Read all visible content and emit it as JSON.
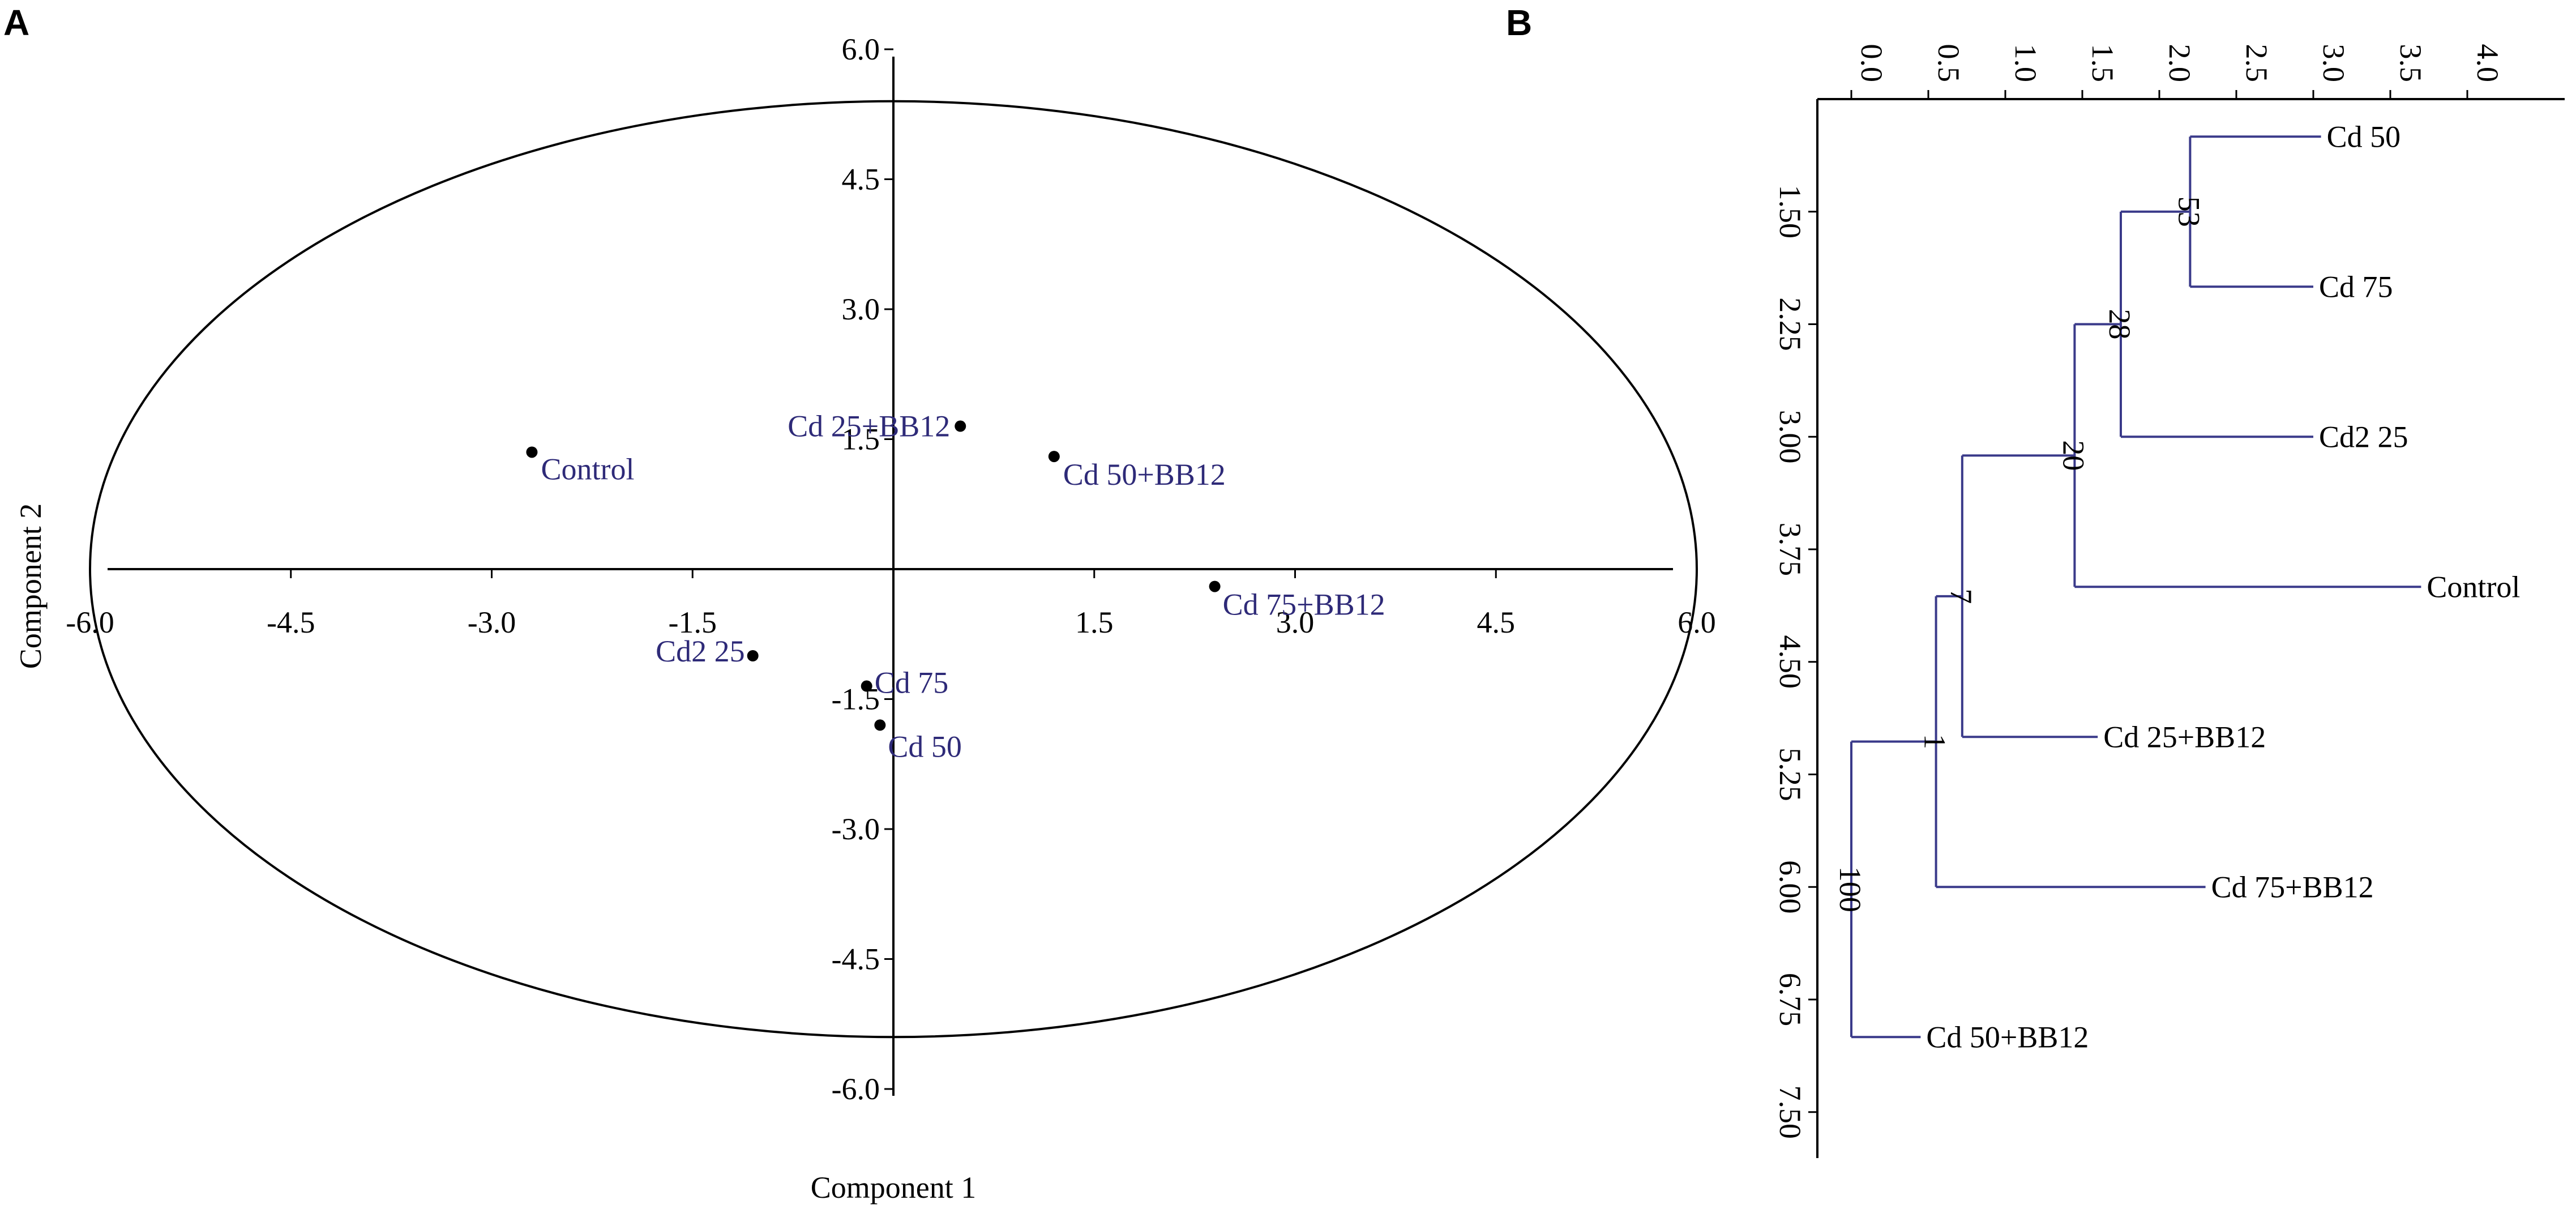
{
  "panels": {
    "a": "A",
    "b": "B"
  },
  "colors": {
    "ink": "#000000",
    "label": "#2e2a78",
    "tree": "#3a3a8a"
  },
  "chart_data": [
    {
      "type": "scatter",
      "xlabel": "Component 1",
      "ylabel": "Component 2",
      "xlim": [
        -6.0,
        6.0
      ],
      "ylim": [
        -6.0,
        6.0
      ],
      "xticks": [
        "-6.0",
        "-4.5",
        "-3.0",
        "-1.5",
        "1.5",
        "3.0",
        "4.5",
        "6.0"
      ],
      "xtick_values": [
        -6.0,
        -4.5,
        -3.0,
        -1.5,
        1.5,
        3.0,
        4.5,
        6.0
      ],
      "yticks": [
        "6.0",
        "4.5",
        "3.0",
        "1.5",
        "-1.5",
        "-3.0",
        "-4.5",
        "-6.0"
      ],
      "ytick_values": [
        6.0,
        4.5,
        3.0,
        1.5,
        -1.5,
        -3.0,
        -4.5,
        -6.0
      ],
      "ellipse": {
        "rx": 6.0,
        "ry": 5.4
      },
      "points": [
        {
          "label": "Control",
          "x": -2.7,
          "y": 1.35
        },
        {
          "label": "Cd 25+BB12",
          "x": 0.5,
          "y": 1.65
        },
        {
          "label": "Cd 50+BB12",
          "x": 1.2,
          "y": 1.3
        },
        {
          "label": "Cd 75+BB12",
          "x": 2.4,
          "y": -0.2
        },
        {
          "label": "Cd2 25",
          "x": -1.05,
          "y": -1.0
        },
        {
          "label": "Cd 75",
          "x": -0.2,
          "y": -1.35
        },
        {
          "label": "Cd 50",
          "x": -0.1,
          "y": -1.8
        }
      ]
    },
    {
      "type": "dendrogram",
      "distance_ticks": [
        "0.0",
        "0.5",
        "1.0",
        "1.5",
        "2.0",
        "2.5",
        "3.0",
        "3.5",
        "4.0"
      ],
      "distance_tick_values": [
        0.0,
        0.5,
        1.0,
        1.5,
        2.0,
        2.5,
        3.0,
        3.5,
        4.0
      ],
      "distance_range": [
        0.0,
        4.0
      ],
      "position_ticks": [
        "1.50",
        "2.25",
        "3.00",
        "3.75",
        "4.50",
        "5.25",
        "6.00",
        "6.75",
        "7.50"
      ],
      "position_tick_values": [
        1.5,
        2.25,
        3.0,
        3.75,
        4.5,
        5.25,
        6.0,
        6.75,
        7.5
      ],
      "position_range": [
        0.75,
        8.25
      ],
      "leaves": [
        {
          "label": "Cd 50",
          "pos": 1.0,
          "tip": 3.05
        },
        {
          "label": "Cd 75",
          "pos": 2.0,
          "tip": 3.0
        },
        {
          "label": "Cd2 25",
          "pos": 3.0,
          "tip": 3.0
        },
        {
          "label": "Control",
          "pos": 4.0,
          "tip": 3.7
        },
        {
          "label": "Cd 25+BB12",
          "pos": 5.0,
          "tip": 1.6
        },
        {
          "label": "Cd 75+BB12",
          "pos": 6.0,
          "tip": 2.3
        },
        {
          "label": "Cd 50+BB12",
          "pos": 7.0,
          "tip": 0.45
        }
      ],
      "merges": [
        {
          "label": "53",
          "height": 2.2,
          "children": [
            "Cd 50",
            "Cd 75"
          ]
        },
        {
          "label": "28",
          "height": 1.75,
          "children": [
            "53",
            "Cd2 25"
          ]
        },
        {
          "label": "20",
          "height": 1.45,
          "children": [
            "28",
            "Control"
          ]
        },
        {
          "label": "7",
          "height": 0.72,
          "children": [
            "20",
            "Cd 25+BB12"
          ]
        },
        {
          "label": "1",
          "height": 0.55,
          "children": [
            "7",
            "Cd 75+BB12"
          ]
        },
        {
          "label": "100",
          "height": 0.0,
          "children": [
            "1",
            "Cd 50+BB12"
          ]
        }
      ]
    }
  ]
}
